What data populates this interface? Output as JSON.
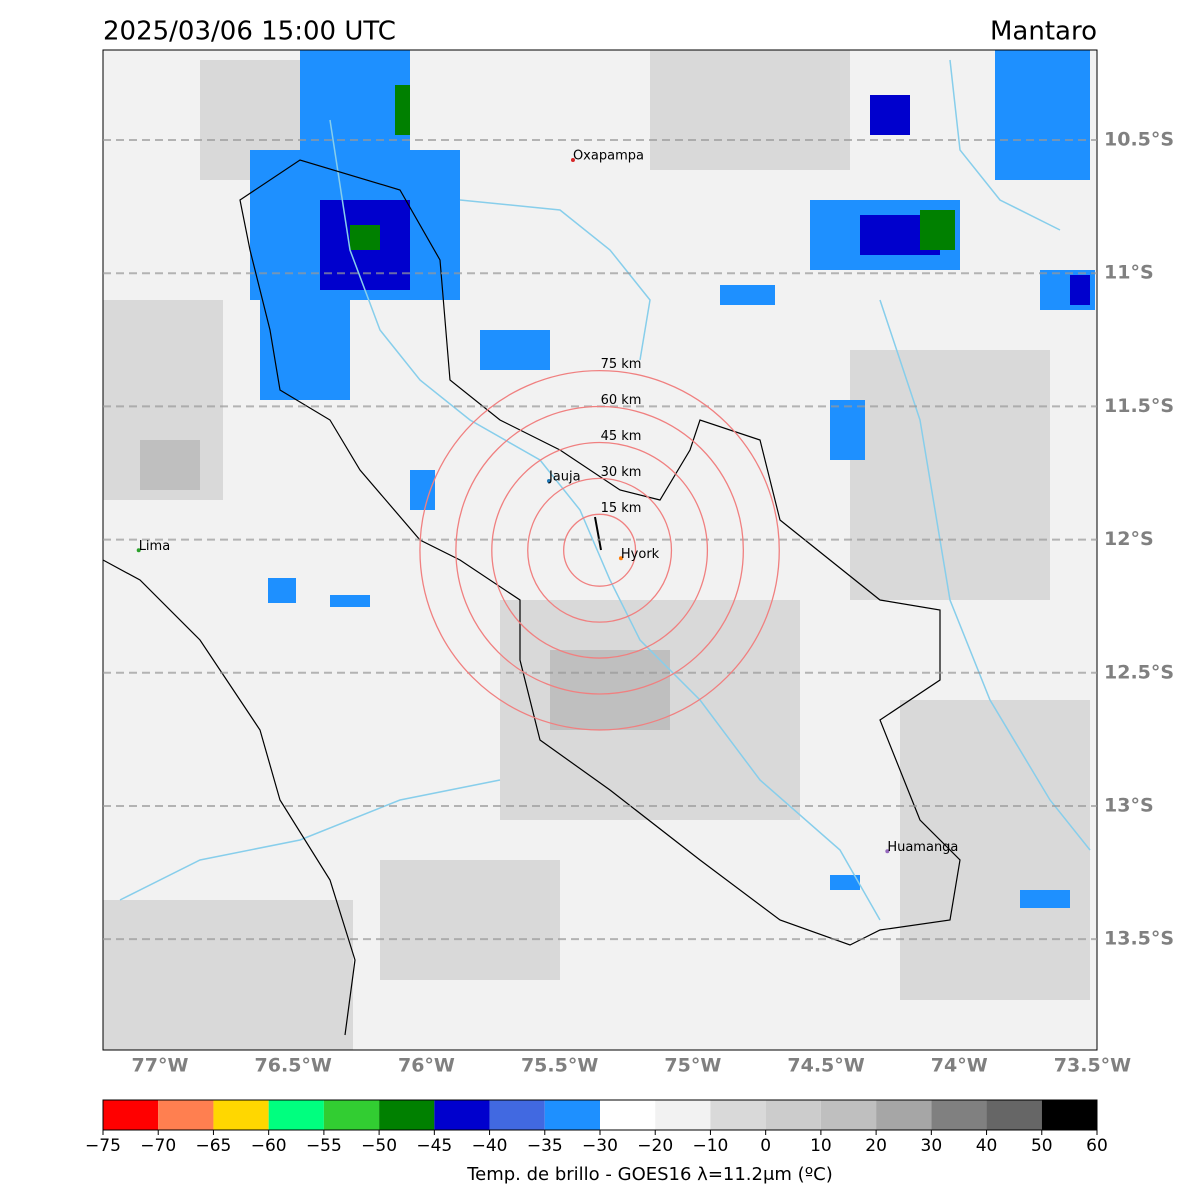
{
  "chart_data": {
    "type": "map",
    "title": "2025/03/06 15:00 UTC",
    "region": "Mantaro",
    "xlim": [
      -77.214,
      -73.483
    ],
    "ylim": [
      -13.916,
      -10.162
    ],
    "xticks": [
      {
        "value": -77,
        "label": "77°W"
      },
      {
        "value": -76.5,
        "label": "76.5°W"
      },
      {
        "value": -76,
        "label": "76°W"
      },
      {
        "value": -75.5,
        "label": "75.5°W"
      },
      {
        "value": -75,
        "label": "75°W"
      },
      {
        "value": -74.5,
        "label": "74.5°W"
      },
      {
        "value": -74,
        "label": "74°W"
      },
      {
        "value": -73.5,
        "label": "73.5°W"
      }
    ],
    "yticks": [
      {
        "value": -10.5,
        "label": "10.5°S"
      },
      {
        "value": -11,
        "label": "11°S"
      },
      {
        "value": -11.5,
        "label": "11.5°S"
      },
      {
        "value": -12,
        "label": "12°S"
      },
      {
        "value": -12.5,
        "label": "12.5°S"
      },
      {
        "value": -13,
        "label": "13°S"
      },
      {
        "value": -13.5,
        "label": "13.5°S"
      }
    ],
    "grid": true,
    "cities": [
      {
        "name": "Oxapampa",
        "lon": -75.45,
        "lat": -10.575,
        "color": "#d62728"
      },
      {
        "name": "Jauja",
        "lon": -75.54,
        "lat": -11.78,
        "color": "#1f77b4"
      },
      {
        "name": "Lima",
        "lon": -77.08,
        "lat": -12.04,
        "color": "#2ca02c"
      },
      {
        "name": "Hyork",
        "lon": -75.27,
        "lat": -12.07,
        "color": "#ff7f0e"
      },
      {
        "name": "Huamanga",
        "lon": -74.27,
        "lat": -13.17,
        "color": "#9467bd"
      }
    ],
    "rings": {
      "center_lon": -75.35,
      "center_lat": -12.04,
      "color": "#f08080",
      "radii": [
        {
          "value": 15,
          "label": "15 km"
        },
        {
          "value": 30,
          "label": "30 km"
        },
        {
          "value": 45,
          "label": "45 km"
        },
        {
          "value": 60,
          "label": "60 km"
        },
        {
          "value": 75,
          "label": "75 km"
        }
      ]
    },
    "colorbar": {
      "label": "Temp. de brillo - GOES16 λ=11.2μm (ºC)",
      "bounds": [
        -75,
        -70,
        -65,
        -60,
        -55,
        -50,
        -45,
        -40,
        -35,
        -30,
        -20,
        -10,
        0,
        10,
        20,
        30,
        40,
        50,
        60
      ],
      "colors": [
        "#ff0000",
        "#ff7f50",
        "#ffd700",
        "#00ff7f",
        "#32cd32",
        "#008000",
        "#0000cd",
        "#4169e1",
        "#1e90ff",
        "#ffffff",
        "#f2f2f2",
        "#d9d9d9",
        "#cccccc",
        "#bfbfbf",
        "#a6a6a6",
        "#808080",
        "#666666",
        "#000000"
      ],
      "ticks": [
        {
          "value": -75,
          "label": "−75"
        },
        {
          "value": -70,
          "label": "−70"
        },
        {
          "value": -65,
          "label": "−65"
        },
        {
          "value": -60,
          "label": "−60"
        },
        {
          "value": -55,
          "label": "−55"
        },
        {
          "value": -50,
          "label": "−50"
        },
        {
          "value": -45,
          "label": "−45"
        },
        {
          "value": -40,
          "label": "−40"
        },
        {
          "value": -35,
          "label": "−35"
        },
        {
          "value": -30,
          "label": "−30"
        },
        {
          "value": -20,
          "label": "−20"
        },
        {
          "value": -10,
          "label": "−10"
        },
        0,
        10,
        20,
        30,
        40,
        50,
        60
      ]
    }
  }
}
